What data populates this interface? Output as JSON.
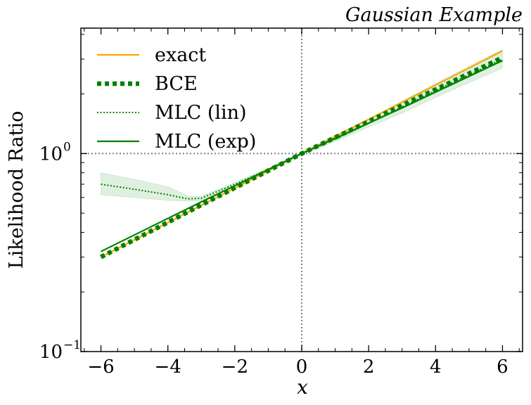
{
  "chart_data": {
    "type": "line",
    "title": "Gaussian Example",
    "xlabel": "x",
    "ylabel": "Likelihood Ratio",
    "xlim": [
      -6.6,
      6.6
    ],
    "ylim": [
      0.1,
      4.3
    ],
    "yscale": "log",
    "x_ticks": [
      -6,
      -4,
      -2,
      0,
      2,
      4,
      6
    ],
    "x_tick_labels": [
      "−6",
      "−4",
      "−2",
      "0",
      "2",
      "4",
      "6"
    ],
    "y_major_ticks": [
      {
        "value": 0.1,
        "base": "10",
        "exp": "−1"
      },
      {
        "value": 1,
        "base": "10",
        "exp": "0"
      }
    ],
    "reference_lines": {
      "x": 0,
      "y": 1,
      "style": "dotted",
      "color": "#808080"
    },
    "legend_position": "top-left",
    "grid": false,
    "series": [
      {
        "name": "exact",
        "color": "#FFA500",
        "style": "solid",
        "x": [
          -6,
          0,
          6
        ],
        "y": [
          0.3,
          1.0,
          3.3
        ]
      },
      {
        "name": "BCE",
        "color": "#008000",
        "style": "thick-dotted",
        "x": [
          -6,
          -3,
          0,
          3,
          6
        ],
        "y": [
          0.3,
          0.55,
          1.0,
          1.75,
          3.05
        ]
      },
      {
        "name": "MLC (lin)",
        "color": "#008000",
        "style": "dotted",
        "x": [
          -6,
          -5,
          -4,
          -3.4,
          -3,
          -2,
          -1,
          0,
          1,
          2,
          3,
          4,
          5,
          6
        ],
        "y": [
          0.7,
          0.66,
          0.62,
          0.59,
          0.595,
          0.7,
          0.83,
          1.0,
          1.18,
          1.42,
          1.72,
          2.08,
          2.5,
          3.0
        ],
        "band_lower": [
          0.62,
          0.6,
          0.58,
          0.575,
          0.58,
          0.685,
          0.815,
          0.985,
          1.15,
          1.36,
          1.6,
          1.92,
          2.28,
          2.7
        ],
        "band_upper": [
          0.8,
          0.74,
          0.68,
          0.61,
          0.61,
          0.715,
          0.845,
          1.015,
          1.2,
          1.48,
          1.84,
          2.26,
          2.76,
          3.35
        ]
      },
      {
        "name": "MLC (exp)",
        "color": "#008000",
        "style": "solid",
        "x": [
          -6,
          -3,
          0,
          3,
          6
        ],
        "y": [
          0.32,
          0.57,
          1.0,
          1.7,
          2.95
        ]
      }
    ]
  }
}
